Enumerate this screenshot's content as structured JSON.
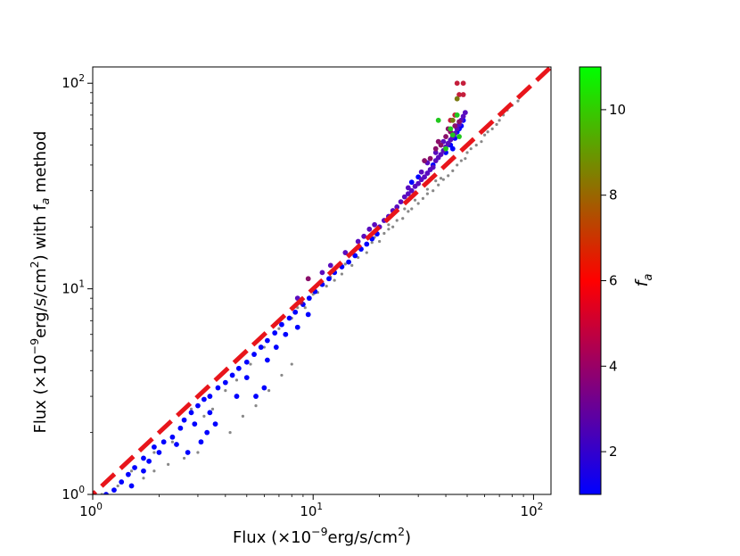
{
  "chart_data": {
    "type": "scatter",
    "title": "",
    "xlabel": "Flux (×10",
    "xlabel_sup": "−9",
    "xlabel_mid": "erg/s/cm",
    "xlabel_sup2": "2",
    "xlabel_end": ")",
    "ylabel": "Flux (×10",
    "ylabel_sup": "−9",
    "ylabel_mid": "erg/s/cm",
    "ylabel_sup2": "2",
    "ylabel_mid2": ") with f",
    "ylabel_sub": "a",
    "ylabel_end": " method",
    "x_scale": "log",
    "y_scale": "log",
    "xlim": [
      1.0,
      120
    ],
    "ylim": [
      1.0,
      120
    ],
    "x_ticks": [
      {
        "base": "10",
        "exp": "0",
        "value": 1
      },
      {
        "base": "10",
        "exp": "1",
        "value": 10
      },
      {
        "base": "10",
        "exp": "2",
        "value": 100
      }
    ],
    "y_ticks": [
      {
        "base": "10",
        "exp": "0",
        "value": 1
      },
      {
        "base": "10",
        "exp": "1",
        "value": 10
      },
      {
        "base": "10",
        "exp": "2",
        "value": 100
      }
    ],
    "reference_line": {
      "type": "y=x",
      "color": "#e8151b",
      "style": "dashed"
    },
    "colorbar": {
      "label": "f",
      "label_sub": "a",
      "range": [
        1,
        11
      ],
      "ticks": [
        "2",
        "4",
        "6",
        "8",
        "10"
      ],
      "tick_values": [
        2,
        4,
        6,
        8,
        10
      ],
      "colors": [
        "#0000ff",
        "#ff0000",
        "#00ff00"
      ]
    },
    "series": [
      {
        "color": "#888888",
        "points": [
          [
            1.1,
            1.0
          ],
          [
            1.3,
            1.1
          ],
          [
            1.5,
            1.3
          ],
          [
            1.9,
            1.6
          ],
          [
            2.3,
            1.8
          ],
          [
            2.8,
            2.6
          ],
          [
            3.2,
            2.4
          ],
          [
            3.5,
            2.6
          ],
          [
            4.0,
            3.2
          ],
          [
            4.5,
            3.6
          ],
          [
            5.2,
            4.3
          ],
          [
            6.0,
            5.2
          ],
          [
            7.0,
            6.4
          ],
          [
            8.0,
            7.2
          ],
          [
            9.2,
            8.1
          ],
          [
            10.5,
            9.6
          ],
          [
            11.5,
            10.3
          ],
          [
            12.5,
            11.0
          ],
          [
            13.5,
            11.8
          ],
          [
            15.0,
            13.0
          ],
          [
            16.0,
            14.2
          ],
          [
            17.5,
            15.0
          ],
          [
            18.5,
            16.8
          ],
          [
            20.0,
            17.0
          ],
          [
            21.0,
            18.6
          ],
          [
            22.0,
            19.5
          ],
          [
            23.0,
            20.0
          ],
          [
            24.0,
            21.5
          ],
          [
            25.5,
            22.0
          ],
          [
            27.0,
            23.8
          ],
          [
            28.0,
            24.5
          ],
          [
            30.0,
            26.0
          ],
          [
            31.5,
            27.5
          ],
          [
            33.0,
            29.0
          ],
          [
            35.0,
            30.0
          ],
          [
            37.0,
            32.0
          ],
          [
            39.0,
            34.0
          ],
          [
            41.0,
            35.5
          ],
          [
            43.0,
            37.5
          ],
          [
            45.0,
            40.0
          ],
          [
            47.0,
            42.0
          ],
          [
            49.0,
            43.0
          ],
          [
            50.0,
            46.0
          ],
          [
            52.0,
            48.0
          ],
          [
            55.0,
            50.0
          ],
          [
            58.0,
            52.0
          ],
          [
            60.0,
            56.0
          ],
          [
            62.0,
            58.0
          ],
          [
            65.0,
            60.0
          ],
          [
            68.0,
            63.0
          ],
          [
            70.0,
            66.0
          ],
          [
            73.0,
            70.0
          ],
          [
            76.0,
            74.0
          ],
          [
            80.0,
            78.0
          ],
          [
            85.0,
            82.0
          ],
          [
            38.0,
            34.5
          ],
          [
            36.0,
            33.5
          ],
          [
            33.0,
            30.5
          ],
          [
            29.0,
            27.0
          ],
          [
            26.0,
            24.5
          ],
          [
            22.0,
            20.5
          ],
          [
            19.0,
            17.8
          ],
          [
            16.5,
            15.4
          ],
          [
            14.0,
            13.2
          ],
          [
            12.0,
            11.4
          ],
          [
            10.0,
            9.4
          ],
          [
            8.5,
            8.1
          ],
          [
            4.2,
            2.0
          ],
          [
            4.8,
            2.4
          ],
          [
            5.5,
            2.7
          ],
          [
            6.3,
            3.2
          ],
          [
            7.2,
            3.8
          ],
          [
            8.0,
            4.3
          ],
          [
            3.0,
            1.6
          ],
          [
            2.6,
            1.5
          ],
          [
            2.2,
            1.4
          ],
          [
            1.9,
            1.3
          ],
          [
            1.7,
            1.2
          ]
        ]
      },
      {
        "color": "#0000ff",
        "points": [
          [
            1.15,
            1.0
          ],
          [
            1.25,
            1.05
          ],
          [
            1.35,
            1.15
          ],
          [
            1.45,
            1.25
          ],
          [
            1.55,
            1.35
          ],
          [
            1.7,
            1.5
          ],
          [
            1.9,
            1.7
          ],
          [
            2.1,
            1.8
          ],
          [
            2.3,
            1.9
          ],
          [
            2.5,
            2.1
          ],
          [
            2.6,
            2.3
          ],
          [
            2.8,
            2.5
          ],
          [
            3.0,
            2.7
          ],
          [
            3.2,
            2.9
          ],
          [
            3.4,
            3.0
          ],
          [
            3.7,
            3.3
          ],
          [
            4.0,
            3.5
          ],
          [
            4.3,
            3.8
          ],
          [
            4.6,
            4.1
          ],
          [
            5.0,
            4.4
          ],
          [
            5.4,
            4.8
          ],
          [
            5.8,
            5.2
          ],
          [
            6.2,
            5.6
          ],
          [
            6.7,
            6.1
          ],
          [
            7.2,
            6.7
          ],
          [
            7.8,
            7.2
          ],
          [
            8.3,
            7.7
          ],
          [
            9.0,
            8.4
          ],
          [
            9.6,
            9.0
          ],
          [
            10.2,
            9.7
          ],
          [
            11.0,
            10.5
          ],
          [
            11.8,
            11.2
          ],
          [
            12.5,
            12.0
          ],
          [
            13.5,
            12.8
          ],
          [
            14.5,
            13.5
          ],
          [
            15.5,
            14.5
          ],
          [
            16.5,
            15.6
          ],
          [
            17.5,
            16.5
          ],
          [
            18.5,
            17.5
          ],
          [
            19.5,
            18.5
          ],
          [
            2.7,
            1.6
          ],
          [
            3.1,
            1.8
          ],
          [
            3.3,
            2.0
          ],
          [
            3.6,
            2.2
          ],
          [
            3.4,
            2.5
          ],
          [
            2.9,
            2.2
          ],
          [
            1.8,
            1.45
          ],
          [
            1.5,
            1.1
          ],
          [
            1.7,
            1.3
          ],
          [
            5.5,
            3.0
          ],
          [
            6.0,
            3.3
          ],
          [
            6.2,
            4.5
          ],
          [
            6.8,
            5.2
          ],
          [
            4.5,
            3.0
          ],
          [
            5.0,
            3.7
          ],
          [
            7.5,
            6.0
          ],
          [
            8.5,
            6.5
          ],
          [
            9.5,
            7.5
          ],
          [
            2.4,
            1.75
          ],
          [
            2.0,
            1.6
          ],
          [
            28.0,
            33.0
          ],
          [
            30.0,
            35.0
          ],
          [
            35.0,
            40.0
          ],
          [
            40.0,
            46.0
          ],
          [
            42.0,
            50.0
          ],
          [
            44.0,
            54.0
          ],
          [
            45.0,
            58.0
          ],
          [
            47.0,
            62.0
          ],
          [
            48.0,
            66.0
          ],
          [
            46.0,
            60.0
          ],
          [
            43.0,
            48.0
          ]
        ]
      },
      {
        "color": "#5a0cc0",
        "points": [
          [
            20.0,
            20.0
          ],
          [
            21.0,
            21.5
          ],
          [
            22.0,
            22.5
          ],
          [
            23.0,
            24.0
          ],
          [
            24.0,
            25.0
          ],
          [
            25.0,
            26.5
          ],
          [
            26.0,
            28.0
          ],
          [
            27.0,
            29.0
          ],
          [
            28.0,
            30.0
          ],
          [
            29.0,
            31.5
          ],
          [
            30.0,
            32.5
          ],
          [
            31.0,
            34.0
          ],
          [
            32.0,
            35.0
          ],
          [
            33.0,
            36.5
          ],
          [
            34.0,
            38.0
          ],
          [
            35.0,
            39.0
          ],
          [
            36.0,
            42.0
          ],
          [
            37.0,
            43.5
          ],
          [
            38.0,
            45.0
          ],
          [
            39.0,
            47.0
          ],
          [
            40.0,
            49.0
          ],
          [
            41.0,
            51.0
          ],
          [
            42.0,
            53.0
          ],
          [
            43.0,
            55.0
          ],
          [
            44.0,
            57.0
          ],
          [
            45.0,
            60.0
          ],
          [
            46.0,
            63.0
          ],
          [
            47.0,
            66.0
          ],
          [
            48.0,
            69.0
          ],
          [
            49.0,
            72.0
          ],
          [
            16.0,
            17.0
          ],
          [
            17.0,
            18.0
          ],
          [
            18.0,
            19.5
          ],
          [
            19.0,
            20.5
          ],
          [
            14.0,
            15.0
          ],
          [
            12.0,
            13.0
          ],
          [
            11.0,
            12.0
          ],
          [
            8.5,
            9.0
          ],
          [
            27.0,
            31.0
          ],
          [
            31.0,
            37.0
          ],
          [
            33.0,
            41.0
          ],
          [
            36.0,
            46.0
          ],
          [
            39.0,
            52.0
          ]
        ]
      },
      {
        "color": "#8a0f6a",
        "points": [
          [
            9.5,
            11.2
          ],
          [
            8.8,
            8.6
          ],
          [
            34.0,
            43.0
          ],
          [
            36.0,
            48.0
          ],
          [
            38.0,
            50.0
          ],
          [
            40.0,
            55.0
          ],
          [
            42.0,
            58.0
          ],
          [
            44.0,
            62.0
          ],
          [
            46.0,
            65.0
          ],
          [
            37.0,
            52.0
          ],
          [
            41.0,
            60.0
          ],
          [
            32.0,
            42.0
          ]
        ]
      },
      {
        "color": "#c51f3c",
        "points": [
          [
            45.0,
            100.0
          ],
          [
            46.0,
            88.0
          ],
          [
            48.0,
            100.0
          ],
          [
            48.0,
            88.0
          ],
          [
            42.0,
            66.0
          ],
          [
            44.0,
            70.0
          ]
        ]
      },
      {
        "color": "#7a7a12",
        "points": [
          [
            45.0,
            84.0
          ],
          [
            43.0,
            66.0
          ]
        ]
      },
      {
        "color": "#22c81e",
        "points": [
          [
            37.0,
            66.0
          ],
          [
            40.0,
            48.0
          ],
          [
            43.0,
            56.0
          ],
          [
            45.0,
            70.0
          ],
          [
            42.0,
            60.0
          ],
          [
            46.0,
            55.0
          ]
        ]
      }
    ]
  }
}
